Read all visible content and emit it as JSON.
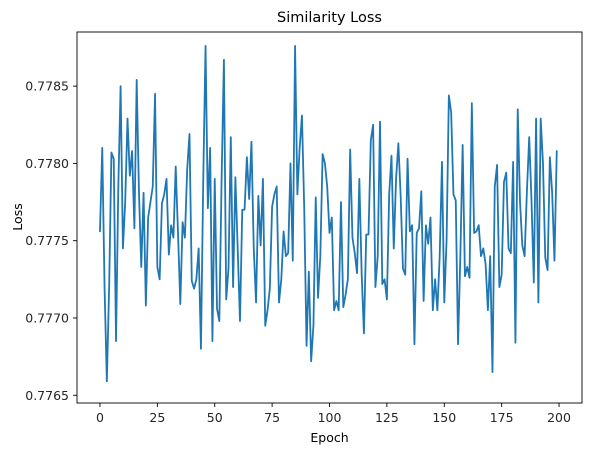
{
  "chart_data": {
    "type": "line",
    "title": "Similarity Loss",
    "xlabel": "Epoch",
    "ylabel": "Loss",
    "xlim": [
      -10,
      210
    ],
    "ylim": [
      0.77645,
      0.77885
    ],
    "xticks": [
      0,
      25,
      50,
      75,
      100,
      125,
      150,
      175,
      200
    ],
    "xtick_labels": [
      "0",
      "25",
      "50",
      "75",
      "100",
      "125",
      "150",
      "175",
      "200"
    ],
    "yticks": [
      0.7765,
      0.777,
      0.7775,
      0.778,
      0.7785
    ],
    "ytick_labels": [
      "0.7765",
      "0.7770",
      "0.7775",
      "0.7780",
      "0.7785"
    ],
    "grid": false,
    "legend": "none",
    "line_color": "#1f77b4",
    "series": [
      {
        "x": [
          0,
          1,
          2,
          3,
          4,
          5,
          6,
          7,
          8,
          9,
          10,
          11,
          12,
          13,
          14,
          15,
          16,
          17,
          18,
          19,
          20,
          21,
          22,
          23,
          24,
          25,
          26,
          27,
          28,
          29,
          30,
          31,
          32,
          33,
          34,
          35,
          36,
          37,
          38,
          39,
          40,
          41,
          42,
          43,
          44,
          45,
          46,
          47,
          48,
          49,
          50,
          51,
          52,
          53,
          54,
          55,
          56,
          57,
          58,
          59,
          60,
          61,
          62,
          63,
          64,
          65,
          66,
          67,
          68,
          69,
          70,
          71,
          72,
          73,
          74,
          75,
          76,
          77,
          78,
          79,
          80,
          81,
          82,
          83,
          84,
          85,
          86,
          87,
          88,
          89,
          90,
          91,
          92,
          93,
          94,
          95,
          96,
          97,
          98,
          99,
          100,
          101,
          102,
          103,
          104,
          105,
          106,
          107,
          108,
          109,
          110,
          111,
          112,
          113,
          114,
          115,
          116,
          117,
          118,
          119,
          120,
          121,
          122,
          123,
          124,
          125,
          126,
          127,
          128,
          129,
          130,
          131,
          132,
          133,
          134,
          135,
          136,
          137,
          138,
          139,
          140,
          141,
          142,
          143,
          144,
          145,
          146,
          147,
          148,
          149,
          150,
          151,
          152,
          153,
          154,
          155,
          156,
          157,
          158,
          159,
          160,
          161,
          162,
          163,
          164,
          165,
          166,
          167,
          168,
          169,
          170,
          171,
          172,
          173,
          174,
          175,
          176,
          177,
          178,
          179,
          180,
          181,
          182,
          183,
          184,
          185,
          186,
          187,
          188,
          189,
          190,
          191,
          192,
          193,
          194,
          195,
          196,
          197,
          198,
          199
        ],
        "values": [
          0.77756,
          0.7781,
          0.7772,
          0.77659,
          0.7772,
          0.77807,
          0.77803,
          0.77685,
          0.77785,
          0.7785,
          0.77745,
          0.77775,
          0.77829,
          0.77792,
          0.77808,
          0.77758,
          0.77854,
          0.77781,
          0.77733,
          0.77781,
          0.77708,
          0.77765,
          0.77775,
          0.77785,
          0.77845,
          0.77733,
          0.77725,
          0.77774,
          0.7778,
          0.7779,
          0.77741,
          0.7776,
          0.77752,
          0.77798,
          0.77755,
          0.77709,
          0.77762,
          0.77752,
          0.77796,
          0.77819,
          0.77724,
          0.77719,
          0.77725,
          0.77745,
          0.7768,
          0.7779,
          0.77876,
          0.77771,
          0.7781,
          0.77685,
          0.7779,
          0.77706,
          0.77698,
          0.7779,
          0.77867,
          0.77712,
          0.77732,
          0.77817,
          0.7772,
          0.77791,
          0.77745,
          0.77698,
          0.7777,
          0.7777,
          0.77804,
          0.77777,
          0.77814,
          0.77745,
          0.7771,
          0.77779,
          0.77747,
          0.7779,
          0.77695,
          0.77705,
          0.77719,
          0.77772,
          0.7778,
          0.77785,
          0.7771,
          0.77725,
          0.77756,
          0.7774,
          0.77742,
          0.778,
          0.77737,
          0.77876,
          0.7778,
          0.7781,
          0.77831,
          0.7777,
          0.77682,
          0.7773,
          0.77672,
          0.77695,
          0.77778,
          0.77713,
          0.7774,
          0.77806,
          0.778,
          0.77785,
          0.77755,
          0.77765,
          0.77705,
          0.77711,
          0.77705,
          0.77775,
          0.77707,
          0.77715,
          0.77725,
          0.77809,
          0.77752,
          0.77742,
          0.77729,
          0.7779,
          0.77729,
          0.7769,
          0.77754,
          0.77754,
          0.77815,
          0.77825,
          0.7772,
          0.7774,
          0.77827,
          0.77722,
          0.77725,
          0.77712,
          0.7778,
          0.77805,
          0.77745,
          0.7779,
          0.77813,
          0.77779,
          0.77732,
          0.77728,
          0.77803,
          0.77756,
          0.7776,
          0.77683,
          0.77755,
          0.77758,
          0.77782,
          0.77711,
          0.7776,
          0.77748,
          0.77765,
          0.77705,
          0.77725,
          0.77705,
          0.7774,
          0.77801,
          0.7771,
          0.7775,
          0.77844,
          0.77833,
          0.7778,
          0.77776,
          0.77683,
          0.7774,
          0.77812,
          0.77727,
          0.77733,
          0.77726,
          0.77839,
          0.77755,
          0.77756,
          0.7776,
          0.7774,
          0.77745,
          0.77735,
          0.77705,
          0.7774,
          0.77665,
          0.77785,
          0.77799,
          0.7772,
          0.77728,
          0.77788,
          0.77794,
          0.77745,
          0.77742,
          0.77801,
          0.77684,
          0.77835,
          0.77775,
          0.77747,
          0.7774,
          0.77782,
          0.77817,
          0.77776,
          0.77723,
          0.77829,
          0.7771,
          0.77829,
          0.778,
          0.77739,
          0.77731,
          0.77804,
          0.77781,
          0.77737,
          0.77808
        ]
      }
    ]
  }
}
